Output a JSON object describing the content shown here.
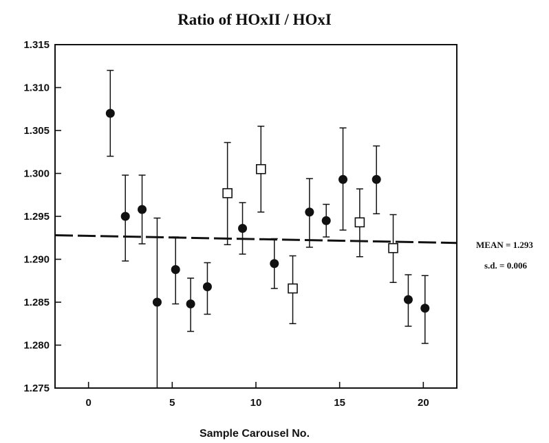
{
  "chart_data": {
    "type": "scatter",
    "title": "Ratio of HOxII / HOxI",
    "xlabel": "Sample Carousel No.",
    "ylabel": "",
    "xlim": [
      -2,
      22
    ],
    "ylim": [
      1.275,
      1.315
    ],
    "x_ticks": [
      {
        "value": 0,
        "label": "0"
      },
      {
        "value": 5,
        "label": "5"
      },
      {
        "value": 10,
        "label": "10"
      },
      {
        "value": 15,
        "label": "15"
      },
      {
        "value": 20,
        "label": "20"
      }
    ],
    "y_ticks": [
      {
        "value": 1.275,
        "label": "1.275"
      },
      {
        "value": 1.28,
        "label": "1.280"
      },
      {
        "value": 1.285,
        "label": "1.285"
      },
      {
        "value": 1.29,
        "label": "1.290"
      },
      {
        "value": 1.295,
        "label": "1.295"
      },
      {
        "value": 1.3,
        "label": "1.300"
      },
      {
        "value": 1.305,
        "label": "1.305"
      },
      {
        "value": 1.31,
        "label": "1.310"
      },
      {
        "value": 1.315,
        "label": "1.315"
      }
    ],
    "grid": false,
    "series": [
      {
        "marker": "filled-circle",
        "points": [
          {
            "x": 1.3,
            "y": 1.307,
            "low": 1.302,
            "high": 1.312
          },
          {
            "x": 2.2,
            "y": 1.295,
            "low": 1.2898,
            "high": 1.2998
          },
          {
            "x": 3.2,
            "y": 1.2958,
            "low": 1.2918,
            "high": 1.2998
          },
          {
            "x": 4.1,
            "y": 1.285,
            "low": 1.275,
            "high": 1.2948
          },
          {
            "x": 5.2,
            "y": 1.2888,
            "low": 1.2848,
            "high": 1.2926
          },
          {
            "x": 6.1,
            "y": 1.2848,
            "low": 1.2816,
            "high": 1.2878
          },
          {
            "x": 7.1,
            "y": 1.2868,
            "low": 1.2836,
            "high": 1.2896
          },
          {
            "x": 9.2,
            "y": 1.2936,
            "low": 1.2906,
            "high": 1.2966
          },
          {
            "x": 11.1,
            "y": 1.2895,
            "low": 1.2866,
            "high": 1.2924
          },
          {
            "x": 13.2,
            "y": 1.2955,
            "low": 1.2914,
            "high": 1.2994
          },
          {
            "x": 14.2,
            "y": 1.2945,
            "low": 1.2926,
            "high": 1.2964
          },
          {
            "x": 15.2,
            "y": 1.2993,
            "low": 1.2934,
            "high": 1.3053
          },
          {
            "x": 17.2,
            "y": 1.2993,
            "low": 1.2953,
            "high": 1.3032
          },
          {
            "x": 19.1,
            "y": 1.2853,
            "low": 1.2822,
            "high": 1.2882
          },
          {
            "x": 20.1,
            "y": 1.2843,
            "low": 1.2802,
            "high": 1.2881
          }
        ]
      },
      {
        "marker": "open-square",
        "points": [
          {
            "x": 8.3,
            "y": 1.2977,
            "low": 1.2917,
            "high": 1.3036
          },
          {
            "x": 10.3,
            "y": 1.3005,
            "low": 1.2955,
            "high": 1.3055
          },
          {
            "x": 12.2,
            "y": 1.2866,
            "low": 1.2825,
            "high": 1.2904
          },
          {
            "x": 16.2,
            "y": 1.2943,
            "low": 1.2903,
            "high": 1.2982
          },
          {
            "x": 18.2,
            "y": 1.2913,
            "low": 1.2873,
            "high": 1.2952
          }
        ]
      }
    ],
    "mean_line": {
      "y_start": 1.2928,
      "y_end": 1.2919,
      "style": "dashed"
    },
    "annotations": [
      "MEAN = 1.293",
      "s.d. = 0.006"
    ]
  }
}
